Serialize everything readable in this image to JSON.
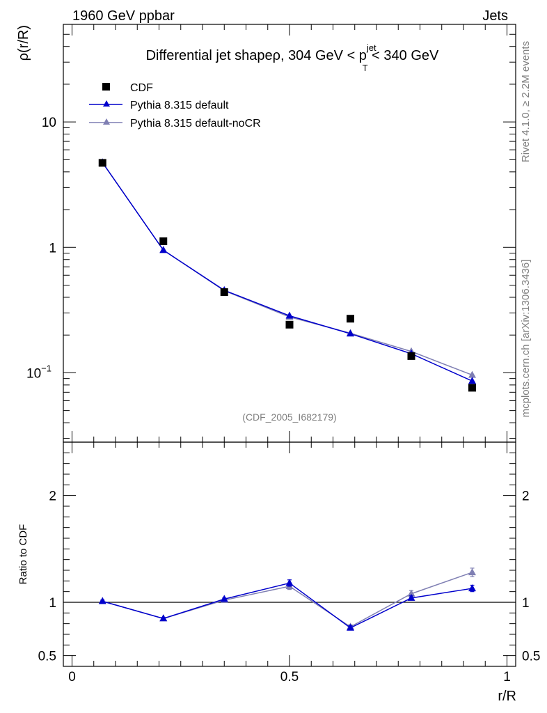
{
  "header": {
    "left": "1960 GeV ppbar",
    "right": "Jets"
  },
  "side_labels": {
    "rivet": "Rivet 4.1.0, ≥ 2.2M events",
    "site": "mcplots.cern.ch [arXiv:1306.3436]"
  },
  "colors": {
    "cdf": "#000000",
    "pythia_default": "#0000cc",
    "pythia_nocr": "#7f7fb3"
  },
  "chart_data": [
    {
      "type": "scatter",
      "title": "Differential jet shapeρ, 304 GeV < p",
      "title_sup": "jet",
      "title_sub": "T",
      "title_end": " < 340 GeV",
      "ylabel": "ρ(r/R)",
      "yscale": "log",
      "ylim": [
        0.028,
        60
      ],
      "xlim": [
        -0.02,
        1.02
      ],
      "y_ticks": [
        {
          "value": 10,
          "label": "10"
        },
        {
          "value": 1,
          "label": "1"
        },
        {
          "value": 0.1,
          "label": "10",
          "sup": "−1"
        }
      ],
      "watermark": "(CDF_2005_I682179)",
      "x": [
        0.07,
        0.21,
        0.35,
        0.5,
        0.64,
        0.78,
        0.92
      ],
      "series": [
        {
          "name": "CDF",
          "marker": "square",
          "values": [
            4.72,
            1.12,
            0.44,
            0.242,
            0.27,
            0.136,
            0.076
          ]
        },
        {
          "name": "Pythia 8.315 default",
          "marker": "triangle",
          "values": [
            4.75,
            0.95,
            0.455,
            0.285,
            0.205,
            0.142,
            0.086
          ]
        },
        {
          "name": "Pythia 8.315 default-noCR",
          "marker": "triangle",
          "values": [
            4.75,
            0.95,
            0.452,
            0.279,
            0.207,
            0.148,
            0.096
          ]
        }
      ]
    },
    {
      "type": "line",
      "ylabel": "Ratio to CDF",
      "xlabel": "r/R",
      "ylim": [
        0.4,
        2.5
      ],
      "xlim": [
        -0.02,
        1.02
      ],
      "x_ticks": [
        {
          "value": 0,
          "label": "0"
        },
        {
          "value": 0.5,
          "label": "0.5"
        },
        {
          "value": 1,
          "label": "1"
        }
      ],
      "y_ticks": [
        {
          "value": 2,
          "label": "2"
        },
        {
          "value": 1,
          "label": "1"
        },
        {
          "value": 0.5,
          "label": "0.5"
        }
      ],
      "reference": 1,
      "x": [
        0.07,
        0.21,
        0.35,
        0.5,
        0.64,
        0.78,
        0.92
      ],
      "series": [
        {
          "name": "Pythia 8.315 default",
          "values": [
            1.01,
            0.848,
            1.03,
            1.18,
            0.76,
            1.04,
            1.13
          ],
          "errors": [
            0.01,
            0.01,
            0.01,
            0.03,
            0.02,
            0.02,
            0.03
          ]
        },
        {
          "name": "Pythia 8.315 default-noCR",
          "values": [
            1.01,
            0.848,
            1.02,
            1.15,
            0.77,
            1.08,
            1.28
          ],
          "errors": [
            0.01,
            0.01,
            0.01,
            0.03,
            0.02,
            0.03,
            0.04
          ]
        }
      ]
    }
  ]
}
